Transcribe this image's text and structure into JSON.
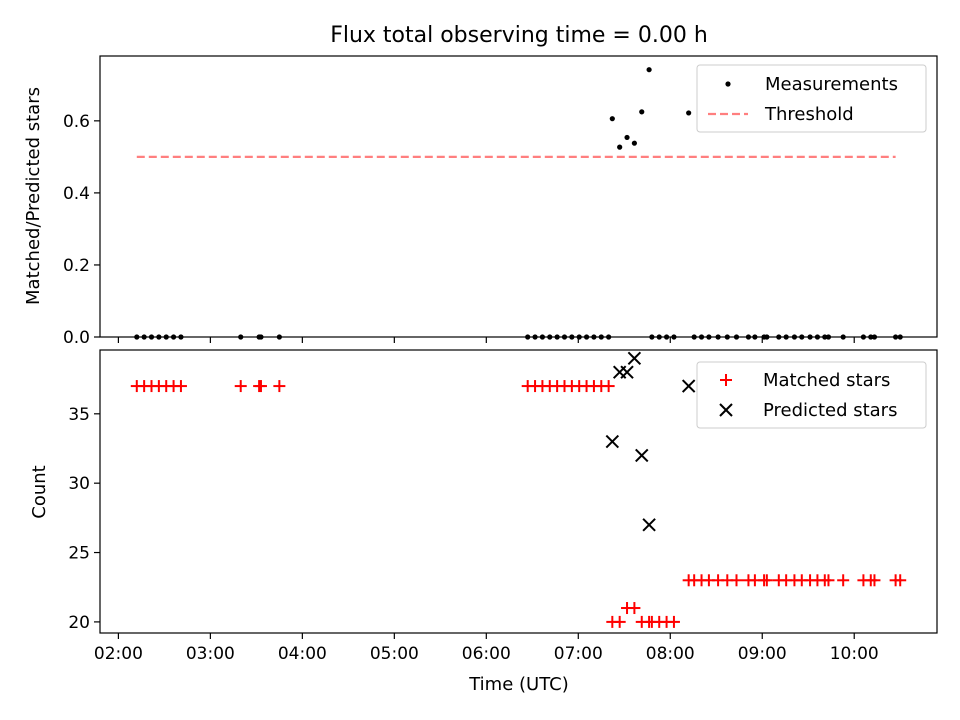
{
  "figure": {
    "title": "Flux total observing time = 0.00 h"
  },
  "chart_data": [
    {
      "type": "scatter",
      "ylabel": "Matched/Predicted stars",
      "xlabel": "",
      "ylim": [
        0,
        0.78
      ],
      "yticks": [
        0.0,
        0.2,
        0.4,
        0.6
      ],
      "ytick_labels": [
        "0.0",
        "0.2",
        "0.4",
        "0.6"
      ],
      "xlim_hours": [
        1.8,
        10.9
      ],
      "legend_position": "top-right",
      "series": [
        {
          "name": "Measurements",
          "kind": "dot",
          "color": "#000000",
          "x_hours": [
            2.2,
            2.28,
            2.36,
            2.44,
            2.52,
            2.6,
            2.68,
            3.33,
            3.53,
            3.55,
            3.75,
            6.45,
            6.53,
            6.61,
            6.69,
            6.77,
            6.85,
            6.93,
            7.01,
            7.09,
            7.17,
            7.25,
            7.33,
            7.37,
            7.45,
            7.53,
            7.61,
            7.69,
            7.77,
            7.8,
            7.88,
            7.96,
            8.04,
            8.2,
            8.26,
            8.34,
            8.42,
            8.52,
            8.62,
            8.72,
            8.85,
            8.92,
            9.02,
            9.05,
            9.18,
            9.26,
            9.35,
            9.43,
            9.52,
            9.6,
            9.68,
            9.72,
            9.88,
            10.1,
            10.18,
            10.22,
            10.45,
            10.5
          ],
          "y": [
            0,
            0,
            0,
            0,
            0,
            0,
            0,
            0,
            0,
            0,
            0,
            0,
            0,
            0,
            0,
            0,
            0,
            0,
            0,
            0,
            0,
            0,
            0,
            0.606,
            0.527,
            0.554,
            0.538,
            0.625,
            0.742,
            0,
            0,
            0,
            0,
            0.622,
            0,
            0,
            0,
            0,
            0,
            0,
            0,
            0,
            0,
            0,
            0,
            0,
            0,
            0,
            0,
            0,
            0,
            0,
            0,
            0,
            0,
            0,
            0,
            0
          ]
        },
        {
          "name": "Threshold",
          "kind": "dashed-line",
          "color": "#ff7f7f",
          "x_hours": [
            2.2,
            10.45
          ],
          "y": [
            0.5,
            0.5
          ]
        }
      ]
    },
    {
      "type": "scatter",
      "ylabel": "Count",
      "xlabel": "Time (UTC)",
      "ylim": [
        19.2,
        39.6
      ],
      "yticks": [
        20,
        25,
        30,
        35
      ],
      "ytick_labels": [
        "20",
        "25",
        "30",
        "35"
      ],
      "xlim_hours": [
        1.8,
        10.9
      ],
      "xticks_hours": [
        2,
        3,
        4,
        5,
        6,
        7,
        8,
        9,
        10
      ],
      "xtick_labels": [
        "02:00",
        "03:00",
        "04:00",
        "05:00",
        "06:00",
        "07:00",
        "08:00",
        "09:00",
        "10:00"
      ],
      "legend_position": "top-right",
      "series": [
        {
          "name": "Matched stars",
          "kind": "plus",
          "color": "#ff0000",
          "x_hours": [
            2.2,
            2.28,
            2.36,
            2.44,
            2.52,
            2.6,
            2.68,
            3.33,
            3.53,
            3.55,
            3.75,
            6.45,
            6.53,
            6.61,
            6.69,
            6.77,
            6.85,
            6.93,
            7.01,
            7.09,
            7.17,
            7.25,
            7.33,
            7.37,
            7.45,
            7.53,
            7.61,
            7.69,
            7.77,
            7.8,
            7.88,
            7.96,
            8.04,
            8.2,
            8.26,
            8.34,
            8.42,
            8.52,
            8.62,
            8.72,
            8.85,
            8.92,
            9.02,
            9.05,
            9.18,
            9.26,
            9.35,
            9.43,
            9.52,
            9.6,
            9.68,
            9.72,
            9.88,
            10.1,
            10.18,
            10.22,
            10.45,
            10.5
          ],
          "y": [
            37,
            37,
            37,
            37,
            37,
            37,
            37,
            37,
            37,
            37,
            37,
            37,
            37,
            37,
            37,
            37,
            37,
            37,
            37,
            37,
            37,
            37,
            37,
            20,
            20,
            21,
            21,
            20,
            20,
            20,
            20,
            20,
            20,
            23,
            23,
            23,
            23,
            23,
            23,
            23,
            23,
            23,
            23,
            23,
            23,
            23,
            23,
            23,
            23,
            23,
            23,
            23,
            23,
            23,
            23,
            23,
            23,
            23
          ]
        },
        {
          "name": "Predicted stars",
          "kind": "x",
          "color": "#000000",
          "x_hours": [
            7.37,
            7.45,
            7.53,
            7.61,
            7.69,
            7.77,
            8.2
          ],
          "y": [
            33,
            38,
            38,
            39,
            32,
            27,
            37
          ]
        }
      ]
    }
  ]
}
